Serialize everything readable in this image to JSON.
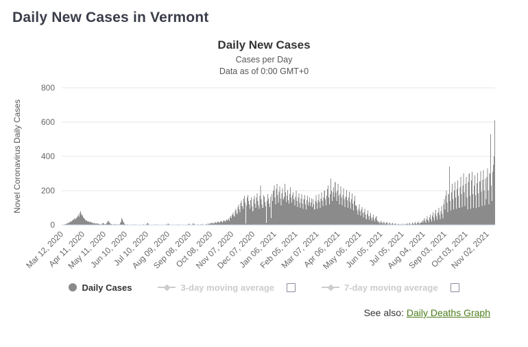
{
  "page": {
    "title": "Daily New Cases in Vermont"
  },
  "chart": {
    "title": "Daily New Cases",
    "subtitle1": "Cases per Day",
    "subtitle2": "Data as of 0:00 GMT+0"
  },
  "legend": {
    "items": [
      {
        "label": "Daily Cases",
        "marker": "circle",
        "color": "#8a8a8a",
        "enabled": true
      },
      {
        "label": "3-day moving average",
        "marker": "line-diamond",
        "color": "#cccccc",
        "enabled": false,
        "checkbox": "unchecked"
      },
      {
        "label": "7-day moving average",
        "marker": "line-diamond",
        "color": "#cccccc",
        "enabled": false,
        "checkbox": "unchecked"
      }
    ]
  },
  "see_also": {
    "prefix": "See also:",
    "link_label": "Daily Deaths Graph"
  },
  "colors": {
    "bar": "#8b8b8b",
    "grid": "#e6e6e6",
    "axis_line": "#ccd6eb",
    "tick_text": "#666666",
    "page_title": "#3a3d49",
    "link_green": "#4a7c19",
    "disabled_legend": "#cccccc"
  },
  "chart_data": {
    "type": "bar",
    "title": "Daily New Cases",
    "subtitle": [
      "Cases per Day",
      "Data as of 0:00 GMT+0"
    ],
    "xlabel": "",
    "ylabel": "Novel Coronavirus Daily Cases",
    "ylim": [
      0,
      800
    ],
    "yticks": [
      0,
      200,
      400,
      600,
      800
    ],
    "grid": true,
    "legend_position": "bottom",
    "series_name": "Daily Cases",
    "hidden_series": [
      "3-day moving average",
      "7-day moving average"
    ],
    "start_date": "Mar 12, 2020",
    "x_tick_labels": [
      "Mar 12, 2020",
      "Apr 11, 2020",
      "May 11, 2020",
      "Jun 10, 2020",
      "Jul 10, 2020",
      "Aug 09, 2020",
      "Sep 08, 2020",
      "Oct 08, 2020",
      "Nov 07, 2020",
      "Dec 07, 2020",
      "Jan 06, 2021",
      "Feb 05, 2021",
      "Mar 07, 2021",
      "Apr 06, 2021",
      "May 06, 2021",
      "Jun 05, 2021",
      "Jul 05, 2021",
      "Aug 04, 2021",
      "Sep 03, 2021",
      "Oct 03, 2021",
      "Nov 02, 2021"
    ],
    "x_tick_day_offsets": [
      0,
      30,
      60,
      90,
      120,
      150,
      180,
      210,
      240,
      270,
      300,
      330,
      360,
      390,
      420,
      450,
      480,
      510,
      540,
      570,
      600
    ],
    "daily_values": [
      2,
      1,
      3,
      2,
      5,
      4,
      7,
      9,
      12,
      10,
      15,
      18,
      22,
      19,
      25,
      30,
      28,
      35,
      40,
      32,
      38,
      45,
      52,
      60,
      48,
      70,
      81,
      65,
      55,
      58,
      45,
      40,
      35,
      30,
      25,
      28,
      20,
      22,
      18,
      15,
      20,
      17,
      12,
      14,
      10,
      8,
      12,
      9,
      7,
      10,
      8,
      6,
      4,
      7,
      5,
      3,
      6,
      9,
      12,
      8,
      5,
      4,
      7,
      10,
      14,
      25,
      18,
      12,
      9,
      6,
      4,
      3,
      5,
      2,
      4,
      6,
      3,
      5,
      2,
      4,
      3,
      5,
      12,
      20,
      40,
      33,
      22,
      15,
      8,
      5,
      3,
      2,
      4,
      1,
      3,
      2,
      0,
      2,
      1,
      3,
      0,
      2,
      4,
      1,
      0,
      3,
      2,
      1,
      2,
      0,
      1,
      2,
      0,
      1,
      3,
      5,
      2,
      1,
      0,
      4,
      8,
      12,
      6,
      3,
      2,
      1,
      0,
      2,
      3,
      1,
      0,
      1,
      2,
      4,
      2,
      1,
      3,
      0,
      1,
      2,
      1,
      0,
      1,
      2,
      0,
      3,
      1,
      4,
      2,
      6,
      9,
      5,
      3,
      1,
      2,
      0,
      1,
      3,
      2,
      1,
      0,
      2,
      1,
      3,
      5,
      2,
      1,
      0,
      2,
      1,
      3,
      2,
      1,
      2,
      1,
      3,
      0,
      2,
      5,
      8,
      4,
      2,
      1,
      3,
      6,
      10,
      7,
      4,
      2,
      1,
      3,
      2,
      5,
      3,
      1,
      2,
      4,
      2,
      6,
      3,
      2,
      1,
      2,
      4,
      6,
      3,
      8,
      5,
      10,
      7,
      12,
      9,
      15,
      11,
      8,
      13,
      18,
      14,
      10,
      16,
      22,
      17,
      13,
      19,
      25,
      20,
      15,
      22,
      28,
      24,
      18,
      26,
      32,
      27,
      30,
      38,
      25,
      45,
      52,
      40,
      60,
      72,
      55,
      48,
      85,
      95,
      70,
      62,
      105,
      118,
      90,
      75,
      128,
      142,
      110,
      95,
      155,
      170,
      130,
      8,
      115,
      160,
      175,
      140,
      120,
      95,
      145,
      160,
      110,
      80,
      150,
      170,
      125,
      100,
      160,
      185,
      140,
      115,
      95,
      170,
      230,
      150,
      120,
      100,
      175,
      165,
      135,
      110,
      12,
      140,
      180,
      155,
      125,
      105,
      165,
      40,
      180,
      140,
      200,
      230,
      160,
      120,
      210,
      240,
      175,
      130,
      195,
      225,
      155,
      115,
      185,
      215,
      150,
      165,
      240,
      190,
      135,
      170,
      205,
      145,
      125,
      180,
      220,
      160,
      130,
      175,
      190,
      150,
      115,
      165,
      200,
      140,
      105,
      160,
      185,
      130,
      100,
      155,
      180,
      125,
      95,
      150,
      175,
      120,
      90,
      145,
      170,
      115,
      135,
      160,
      110,
      130,
      155,
      105,
      150,
      120,
      90,
      140,
      175,
      130,
      95,
      145,
      180,
      135,
      100,
      155,
      190,
      140,
      110,
      160,
      200,
      150,
      115,
      170,
      210,
      230,
      160,
      120,
      180,
      270,
      200,
      140,
      190,
      220,
      165,
      250,
      190,
      140,
      200,
      240,
      170,
      120,
      180,
      225,
      160,
      115,
      175,
      215,
      150,
      105,
      165,
      205,
      145,
      100,
      160,
      195,
      135,
      95,
      150,
      185,
      125,
      85,
      140,
      170,
      115,
      110,
      85,
      60,
      95,
      120,
      80,
      55,
      90,
      105,
      70,
      45,
      75,
      95,
      60,
      35,
      65,
      85,
      50,
      30,
      55,
      70,
      40,
      25,
      45,
      60,
      35,
      20,
      40,
      50,
      28,
      18,
      22,
      15,
      8,
      18,
      25,
      12,
      6,
      14,
      20,
      10,
      4,
      12,
      16,
      8,
      3,
      10,
      14,
      6,
      2,
      8,
      12,
      5,
      1,
      6,
      10,
      4,
      2,
      5,
      8,
      3,
      4,
      2,
      6,
      1,
      3,
      8,
      2,
      5,
      1,
      4,
      10,
      6,
      3,
      8,
      12,
      5,
      2,
      7,
      15,
      9,
      4,
      11,
      18,
      8,
      5,
      13,
      20,
      10,
      6,
      15,
      12,
      18,
      25,
      14,
      30,
      40,
      22,
      12,
      35,
      50,
      28,
      16,
      45,
      60,
      34,
      20,
      55,
      75,
      42,
      25,
      65,
      88,
      50,
      30,
      72,
      100,
      58,
      35,
      80,
      110,
      64,
      38,
      120,
      150,
      90,
      170,
      200,
      130,
      75,
      180,
      340,
      140,
      85,
      190,
      240,
      150,
      90,
      200,
      250,
      160,
      95,
      210,
      260,
      170,
      100,
      220,
      280,
      180,
      105,
      230,
      300,
      190,
      110,
      240,
      280,
      160,
      90,
      250,
      300,
      170,
      95,
      260,
      310,
      180,
      100,
      230,
      290,
      175,
      98,
      245,
      305,
      185,
      105,
      255,
      315,
      195,
      110,
      265,
      320,
      200,
      115,
      270,
      150,
      280,
      330,
      200,
      120,
      300,
      530,
      230,
      140,
      310,
      350,
      400,
      610
    ]
  }
}
